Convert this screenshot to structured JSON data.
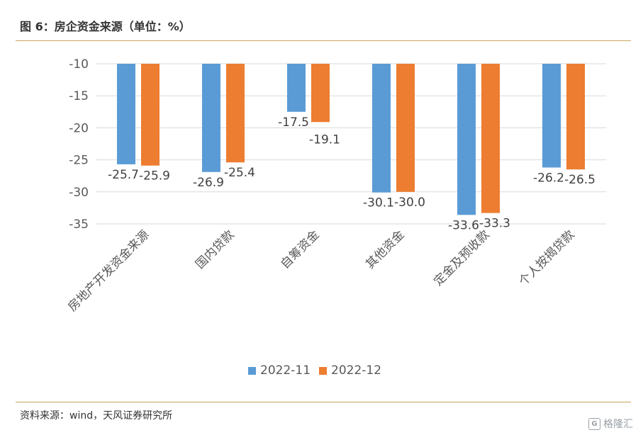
{
  "header": {
    "title": "图 6：房企资金来源（单位：%）"
  },
  "footer": {
    "source": "资料来源：wind，天风证券研究所",
    "watermark": "格隆汇",
    "watermark_logo": "G"
  },
  "colors": {
    "series1": "#5b9bd5",
    "series2": "#ed7d31",
    "gridline": "#d9d9d9",
    "rule": "#c8a45a"
  },
  "chart_data": {
    "type": "bar",
    "title": "",
    "xlabel": "",
    "ylabel": "",
    "ylim": [
      -35,
      -10
    ],
    "y_ticks": [
      "-10",
      "-15",
      "-20",
      "-25",
      "-30",
      "-35"
    ],
    "y_tick_values": [
      -10,
      -15,
      -20,
      -25,
      -30,
      -35
    ],
    "grid": true,
    "legend_position": "bottom",
    "categories": [
      "房地产开发资金来源",
      "国内贷款",
      "自筹资金",
      "其他资金",
      "定金及预收款",
      "个人按揭贷款"
    ],
    "series": [
      {
        "name": "2022-11",
        "values": [
          -25.7,
          -26.9,
          -17.5,
          -30.1,
          -33.6,
          -26.2
        ],
        "labels": [
          "-25.7",
          "-26.9",
          "-17.5",
          "-30.1",
          "-33.6",
          "-26.2"
        ]
      },
      {
        "name": "2022-12",
        "values": [
          -25.9,
          -25.4,
          -19.1,
          -30.0,
          -33.3,
          -26.5
        ],
        "labels": [
          "-25.9",
          "-25.4",
          "-19.1",
          "-30.0",
          "-33.3",
          "-26.5"
        ]
      }
    ]
  }
}
